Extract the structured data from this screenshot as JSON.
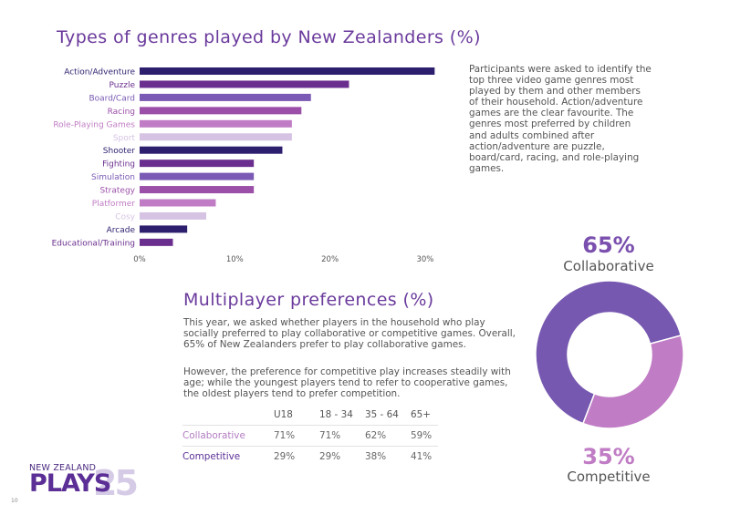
{
  "title": "Types of genres played by New Zealanders (%)",
  "participants_text": "Participants were asked to identify the top three video game genres most played by them and other members of their household. Action/adventure games are the clear favourite. The genres most preferred by children and adults combined after action/adventure are puzzle, board/card, racing, and role-playing games.",
  "chart_data": [
    {
      "type": "bar",
      "orientation": "horizontal",
      "title": "Types of genres played by New Zealanders (%)",
      "categories": [
        "Action/Adventure",
        "Puzzle",
        "Board/Card",
        "Racing",
        "Role-Playing Games",
        "Sport",
        "Shooter",
        "Fighting",
        "Simulation",
        "Strategy",
        "Platformer",
        "Cosy",
        "Arcade",
        "Educational/Training"
      ],
      "values": [
        31,
        22,
        18,
        17,
        16,
        16,
        15,
        12,
        12,
        12,
        8,
        7,
        5,
        3.5
      ],
      "colors": [
        "#2e1f6e",
        "#6a2f8e",
        "#7a5ab4",
        "#9b4fa8",
        "#c07cc4",
        "#d6c3e4",
        "#2e1f6e",
        "#6a2f8e",
        "#7a5ab4",
        "#9b4fa8",
        "#c07cc4",
        "#d6c3e4",
        "#2e1f6e",
        "#6a2f8e"
      ],
      "x_ticks": [
        "0%",
        "10%",
        "20%",
        "30%"
      ],
      "xlim": [
        0,
        30
      ],
      "grid": false
    },
    {
      "type": "pie",
      "style": "donut",
      "labels": [
        "Collaborative",
        "Competitive"
      ],
      "values": [
        65,
        35
      ],
      "percent_labels": [
        "65%",
        "35%"
      ],
      "colors": [
        "#7758b0",
        "#c07cc4"
      ]
    }
  ],
  "multiplayer": {
    "title": "Multiplayer preferences (%)",
    "para1": "This year, we asked whether players in the household who play socially preferred to play collaborative or competitive games. Overall, 65% of New Zealanders prefer to play collaborative games.",
    "para2": "However, the preference for competitive play increases steadily with age; while the youngest players tend to refer to cooperative games, the oldest players tend to prefer competition.",
    "table": {
      "headers": [
        "U18",
        "18 - 34",
        "35 - 64",
        "65+"
      ],
      "rows": [
        {
          "label": "Collaborative",
          "values": [
            "71%",
            "71%",
            "62%",
            "59%"
          ],
          "color": "#b27cc2"
        },
        {
          "label": "Competitive",
          "values": [
            "29%",
            "29%",
            "38%",
            "41%"
          ],
          "color": "#5b2f96"
        }
      ]
    }
  },
  "logo": {
    "top": "NEW ZEALAND",
    "main": "PLAYS",
    "year": "25"
  },
  "page_number": "10"
}
